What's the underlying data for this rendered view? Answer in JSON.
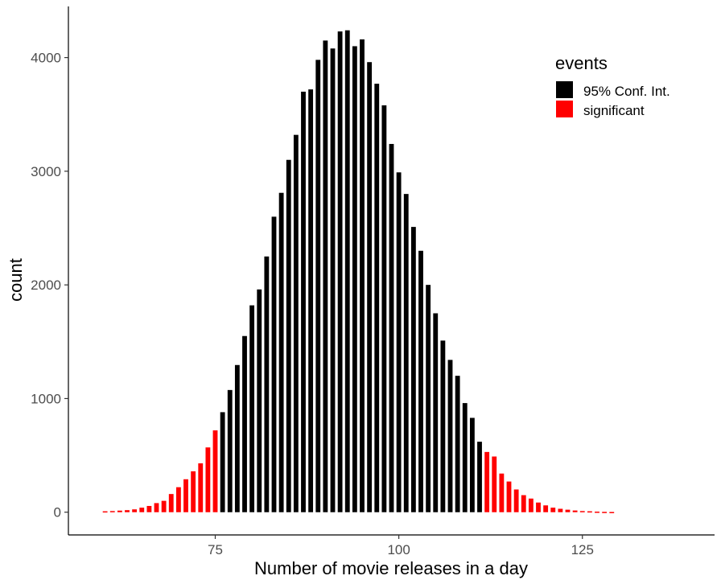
{
  "chart_data": {
    "type": "bar",
    "title": "",
    "xlabel": "Number of movie releases in a day",
    "ylabel": "count",
    "xlim": [
      55,
      143
    ],
    "ylim": [
      -200,
      4450
    ],
    "x_ticks": [
      75,
      100,
      125
    ],
    "y_ticks": [
      0,
      1000,
      2000,
      3000,
      4000
    ],
    "legend": {
      "title": "events",
      "position": "top-right",
      "entries": [
        {
          "label": "95% Conf. Int.",
          "color": "#000000"
        },
        {
          "label": "significant",
          "color": "#ff0000"
        }
      ]
    },
    "grid": false,
    "series": [
      {
        "name": "95% Conf. Int.",
        "color": "#000000",
        "x": [
          76,
          77,
          78,
          79,
          80,
          81,
          82,
          83,
          84,
          85,
          86,
          87,
          88,
          89,
          90,
          91,
          92,
          93,
          94,
          95,
          96,
          97,
          98,
          99,
          100,
          101,
          102,
          103,
          104,
          105,
          106,
          107,
          108,
          109,
          110,
          111
        ],
        "values": [
          880,
          1075,
          1295,
          1550,
          1820,
          1960,
          2250,
          2600,
          2810,
          3100,
          3320,
          3700,
          3720,
          3980,
          4150,
          4080,
          4230,
          4240,
          4100,
          4160,
          3960,
          3770,
          3580,
          3240,
          2990,
          2800,
          2510,
          2300,
          2000,
          1750,
          1510,
          1340,
          1200,
          960,
          830,
          620
        ]
      },
      {
        "name": "significant",
        "color": "#ff0000",
        "x": [
          60,
          61,
          62,
          63,
          64,
          65,
          66,
          67,
          68,
          69,
          70,
          71,
          72,
          73,
          74,
          75,
          112,
          113,
          114,
          115,
          116,
          117,
          118,
          119,
          120,
          121,
          122,
          123,
          124,
          125,
          126,
          127,
          128,
          129
        ],
        "values": [
          8,
          10,
          14,
          18,
          25,
          40,
          55,
          80,
          100,
          160,
          220,
          290,
          360,
          430,
          570,
          720,
          530,
          490,
          340,
          270,
          200,
          150,
          120,
          85,
          60,
          40,
          30,
          22,
          15,
          10,
          8,
          5,
          3,
          2
        ]
      }
    ]
  }
}
